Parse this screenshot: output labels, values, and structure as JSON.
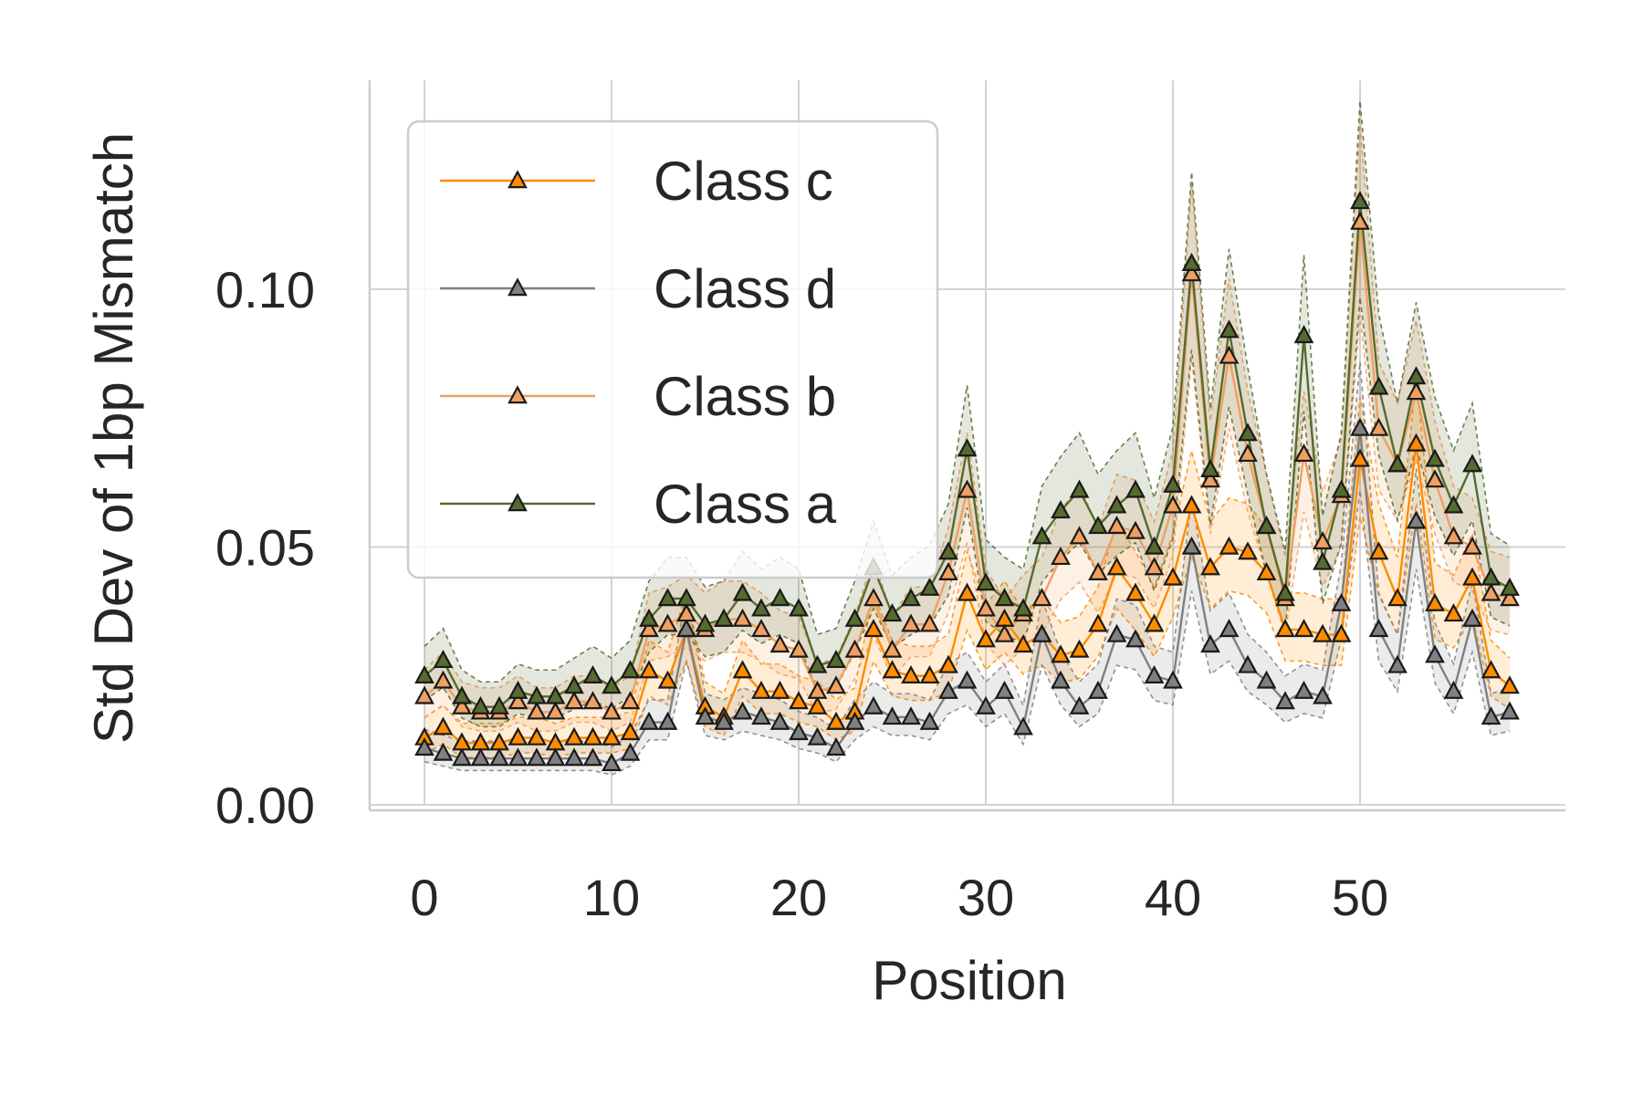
{
  "chart_data": {
    "type": "line",
    "title": "",
    "xlabel": "Position",
    "ylabel": "Std Dev of 1bp Mismatch",
    "xlim": [
      -3,
      61
    ],
    "ylim": [
      -0.001,
      0.14
    ],
    "xticks": [
      0,
      10,
      20,
      30,
      40,
      50
    ],
    "yticks": [
      0.0,
      0.05,
      0.1
    ],
    "ytick_labels": [
      "0.00",
      "0.05",
      "0.10"
    ],
    "grid": true,
    "legend_position": "upper-left",
    "marker": "triangle",
    "band_halfwidth_fraction": 0.15,
    "series": [
      {
        "name": "Class c",
        "color": "#ff8c00",
        "values": [
          0.013,
          0.015,
          0.012,
          0.012,
          0.012,
          0.013,
          0.013,
          0.012,
          0.013,
          0.013,
          0.013,
          0.014,
          0.026,
          0.024,
          0.034,
          0.019,
          0.017,
          0.026,
          0.022,
          0.022,
          0.02,
          0.019,
          0.016,
          0.018,
          0.034,
          0.026,
          0.025,
          0.025,
          0.027,
          0.041,
          0.032,
          0.036,
          0.031,
          0.033,
          0.029,
          0.03,
          0.035,
          0.046,
          0.041,
          0.035,
          0.044,
          0.058,
          0.046,
          0.05,
          0.049,
          0.045,
          0.034,
          0.034,
          0.033,
          0.033,
          0.067,
          0.049,
          0.04,
          0.07,
          0.039,
          0.037,
          0.044,
          0.026,
          0.023
        ]
      },
      {
        "name": "Class d",
        "color": "#808080",
        "values": [
          0.011,
          0.01,
          0.009,
          0.009,
          0.009,
          0.009,
          0.009,
          0.009,
          0.009,
          0.009,
          0.008,
          0.01,
          0.016,
          0.016,
          0.034,
          0.017,
          0.016,
          0.018,
          0.017,
          0.016,
          0.014,
          0.013,
          0.011,
          0.016,
          0.019,
          0.017,
          0.017,
          0.016,
          0.022,
          0.024,
          0.019,
          0.022,
          0.015,
          0.033,
          0.024,
          0.019,
          0.022,
          0.033,
          0.032,
          0.025,
          0.024,
          0.05,
          0.031,
          0.034,
          0.027,
          0.024,
          0.02,
          0.022,
          0.021,
          0.039,
          0.073,
          0.034,
          0.027,
          0.055,
          0.029,
          0.022,
          0.036,
          0.017,
          0.018
        ]
      },
      {
        "name": "Class b",
        "color": "#f0a060",
        "values": [
          0.021,
          0.024,
          0.019,
          0.018,
          0.018,
          0.02,
          0.018,
          0.018,
          0.02,
          0.02,
          0.018,
          0.02,
          0.034,
          0.035,
          0.037,
          0.034,
          0.036,
          0.036,
          0.034,
          0.031,
          0.03,
          0.022,
          0.023,
          0.03,
          0.04,
          0.03,
          0.035,
          0.035,
          0.045,
          0.061,
          0.038,
          0.033,
          0.037,
          0.04,
          0.048,
          0.052,
          0.045,
          0.054,
          0.053,
          0.046,
          0.058,
          0.103,
          0.063,
          0.087,
          0.068,
          0.054,
          0.04,
          0.068,
          0.051,
          0.06,
          0.113,
          0.073,
          0.066,
          0.08,
          0.063,
          0.052,
          0.05,
          0.041,
          0.04
        ]
      },
      {
        "name": "Class a",
        "color": "#556b2f",
        "values": [
          0.025,
          0.028,
          0.021,
          0.019,
          0.019,
          0.022,
          0.021,
          0.021,
          0.023,
          0.025,
          0.023,
          0.026,
          0.036,
          0.04,
          0.04,
          0.035,
          0.036,
          0.041,
          0.038,
          0.04,
          0.038,
          0.027,
          0.028,
          0.036,
          0.046,
          0.037,
          0.04,
          0.042,
          0.049,
          0.069,
          0.043,
          0.04,
          0.038,
          0.052,
          0.057,
          0.061,
          0.054,
          0.058,
          0.061,
          0.05,
          0.062,
          0.105,
          0.065,
          0.092,
          0.072,
          0.054,
          0.041,
          0.091,
          0.047,
          0.061,
          0.117,
          0.081,
          0.066,
          0.083,
          0.067,
          0.058,
          0.066,
          0.044,
          0.042
        ]
      }
    ]
  }
}
